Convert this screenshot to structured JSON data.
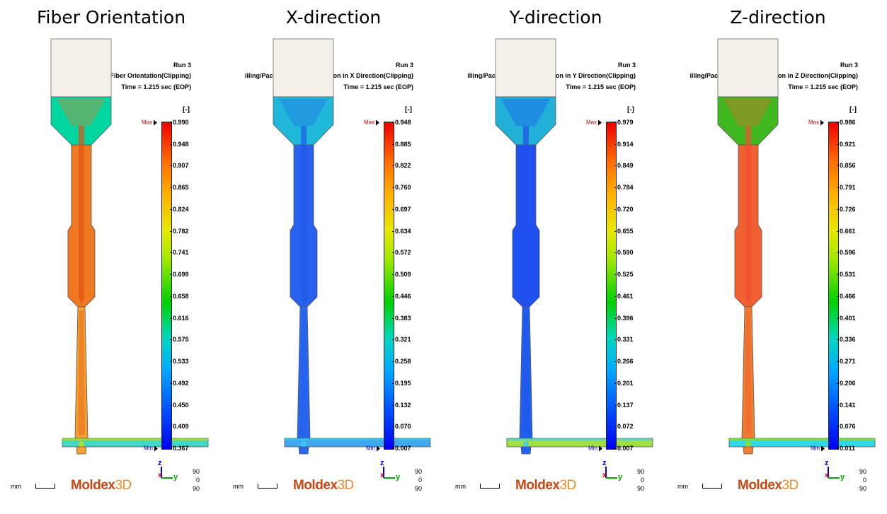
{
  "panels": [
    {
      "title": "Fiber Orientation",
      "run": "Run 3",
      "result": "Filling/Packing_Fiber Orientation(Clipping)",
      "time": "Time = 1.215 sec (EOP)",
      "unit": "[-]",
      "ticks": [
        "0.990",
        "0.948",
        "0.907",
        "0.865",
        "0.824",
        "0.782",
        "0.741",
        "0.699",
        "0.658",
        "0.616",
        "0.575",
        "0.533",
        "0.492",
        "0.450",
        "0.409",
        "0.367"
      ],
      "colors": {
        "gate": "#00d6a0",
        "body": "#f07820",
        "core": "#e05010",
        "lower": "#f5a030",
        "bar": "#40d8c8",
        "edge": "#c8e000"
      }
    },
    {
      "title": "X-direction",
      "run": "Run 3",
      "result": "illing/Packing_Fiber Orientation in X Direction(Clipping)",
      "time": "Time = 1.215 sec (EOP)",
      "unit": "[-]",
      "ticks": [
        "0.948",
        "0.885",
        "0.822",
        "0.760",
        "0.697",
        "0.634",
        "0.572",
        "0.509",
        "0.446",
        "0.383",
        "0.321",
        "0.258",
        "0.195",
        "0.132",
        "0.070",
        "0.007"
      ],
      "colors": {
        "gate": "#20b8d8",
        "body": "#2860f0",
        "core": "#2058e8",
        "lower": "#2868f0",
        "bar": "#40a8f0",
        "edge": "#40c8f0"
      }
    },
    {
      "title": "Y-direction",
      "run": "Run 3",
      "result": "illing/Packing_Fiber Orientation in Y Direction(Clipping)",
      "time": "Time = 1.215 sec (EOP)",
      "unit": "[-]",
      "ticks": [
        "0.979",
        "0.914",
        "0.849",
        "0.784",
        "0.720",
        "0.655",
        "0.590",
        "0.525",
        "0.461",
        "0.396",
        "0.331",
        "0.266",
        "0.201",
        "0.137",
        "0.072",
        "0.007"
      ],
      "colors": {
        "gate": "#20b0d8",
        "body": "#2050f0",
        "core": "#2050e8",
        "lower": "#2060f0",
        "bar": "#a0e040",
        "edge": "#40c8f0"
      }
    },
    {
      "title": "Z-direction",
      "run": "Run 3",
      "result": "illing/Packing_Fiber Orientation in Z Direction(Clipping)",
      "time": "Time = 1.215 sec (EOP)",
      "unit": "[-]",
      "ticks": [
        "0.986",
        "0.921",
        "0.856",
        "0.791",
        "0.726",
        "0.661",
        "0.596",
        "0.531",
        "0.466",
        "0.401",
        "0.336",
        "0.271",
        "0.206",
        "0.141",
        "0.076",
        "0.011"
      ],
      "colors": {
        "gate": "#40b820",
        "body": "#f06030",
        "core": "#f05030",
        "lower": "#f08030",
        "bar": "#30d8e8",
        "edge": "#a0e000"
      }
    }
  ],
  "max_label": "Max",
  "min_label": "Min",
  "scale_text": "mm",
  "logo": {
    "main": "Moldex",
    "suffix": "3D"
  },
  "axes": {
    "z": "z",
    "x": "x",
    "y": "y",
    "angles": [
      "90",
      "0",
      "90"
    ]
  }
}
